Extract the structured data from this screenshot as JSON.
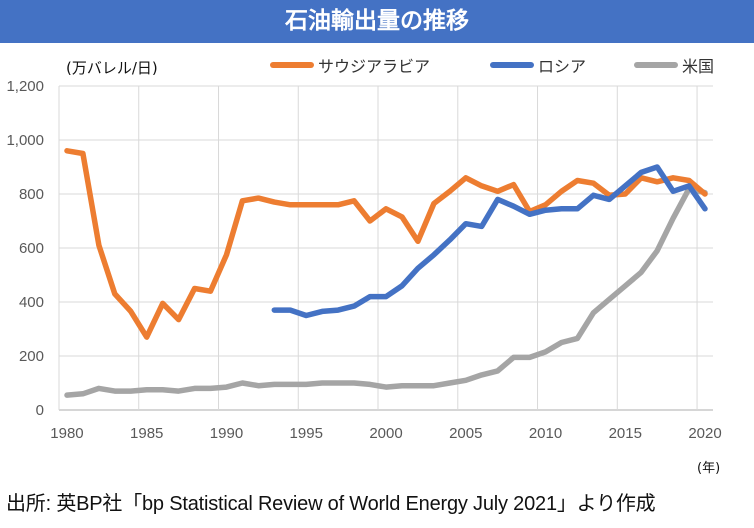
{
  "title": "石油輸出量の推移",
  "y_unit_label": "(万バレル/日)",
  "x_unit_label": "(年)",
  "caption": "出所: 英BP社「bp Statistical Review of World Energy July 2021」より作成",
  "chart_data": {
    "type": "line",
    "title": "石油輸出量の推移",
    "xlabel": "(年)",
    "ylabel": "(万バレル/日)",
    "x": [
      1980,
      1981,
      1982,
      1983,
      1984,
      1985,
      1986,
      1987,
      1988,
      1989,
      1990,
      1991,
      1992,
      1993,
      1994,
      1995,
      1996,
      1997,
      1998,
      1999,
      2000,
      2001,
      2002,
      2003,
      2004,
      2005,
      2006,
      2007,
      2008,
      2009,
      2010,
      2011,
      2012,
      2013,
      2014,
      2015,
      2016,
      2017,
      2018,
      2019,
      2020
    ],
    "xticks": [
      "1980",
      "1985",
      "1990",
      "1995",
      "2000",
      "2005",
      "2010",
      "2015",
      "2020"
    ],
    "yticks": [
      "0",
      "200",
      "400",
      "600",
      "800",
      "1,000",
      "1,200"
    ],
    "ylim": [
      0,
      1200
    ],
    "grid": true,
    "legend_position": "top",
    "series": [
      {
        "name": "サウジアラビア",
        "color": "#ED7D31",
        "values": [
          960,
          950,
          610,
          430,
          365,
          270,
          395,
          335,
          450,
          440,
          575,
          775,
          785,
          770,
          760,
          760,
          760,
          760,
          775,
          700,
          745,
          715,
          625,
          765,
          810,
          860,
          830,
          810,
          835,
          735,
          760,
          810,
          850,
          840,
          795,
          800,
          860,
          845,
          860,
          850,
          800
        ]
      },
      {
        "name": "ロシア",
        "color": "#4472C4",
        "values": [
          null,
          null,
          null,
          null,
          null,
          null,
          null,
          null,
          null,
          null,
          null,
          null,
          null,
          370,
          370,
          350,
          365,
          370,
          385,
          420,
          420,
          460,
          525,
          575,
          630,
          690,
          680,
          780,
          755,
          725,
          740,
          745,
          745,
          795,
          780,
          830,
          880,
          900,
          810,
          830,
          745
        ]
      },
      {
        "name": "米国",
        "color": "#A5A5A5",
        "values": [
          55,
          60,
          80,
          70,
          70,
          75,
          75,
          70,
          80,
          80,
          85,
          100,
          90,
          95,
          95,
          95,
          100,
          100,
          100,
          95,
          85,
          90,
          90,
          90,
          100,
          110,
          130,
          145,
          195,
          195,
          215,
          250,
          265,
          360,
          410,
          460,
          510,
          590,
          710,
          820,
          805
        ]
      }
    ]
  }
}
